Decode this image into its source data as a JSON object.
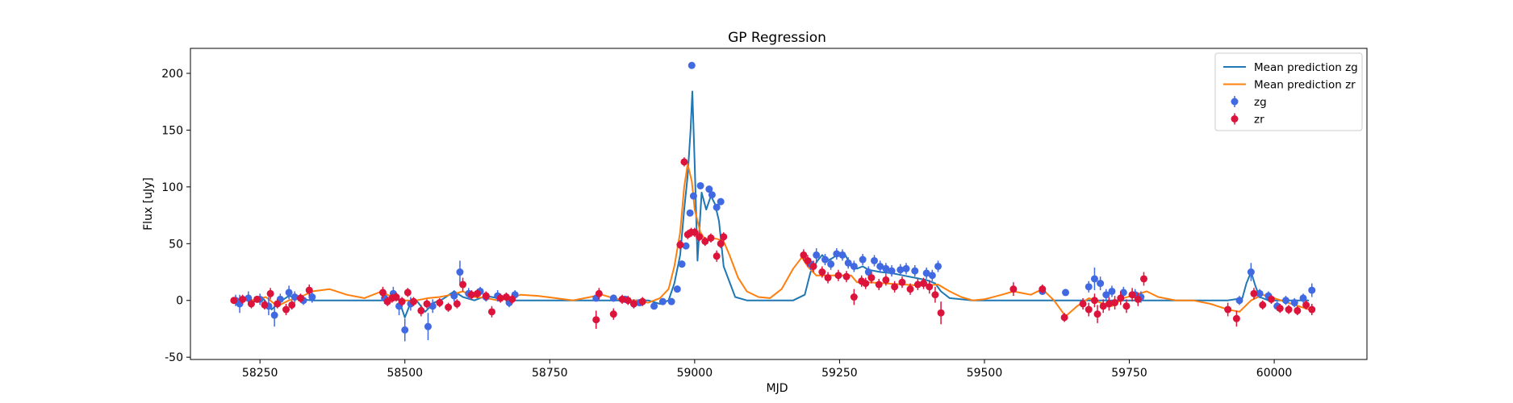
{
  "chart_data": {
    "type": "scatter",
    "title": "GP Regression",
    "xlabel": "MJD",
    "ylabel": "Flux [uJy]",
    "xlim": [
      58130,
      60160
    ],
    "ylim": [
      -52,
      222
    ],
    "xticks": [
      58250,
      58500,
      58750,
      59000,
      59250,
      59500,
      59750,
      60000
    ],
    "yticks": [
      -50,
      0,
      50,
      100,
      150,
      200
    ],
    "grid": false,
    "legend_position": "top-right",
    "legend": [
      "Mean prediction zg",
      "Mean prediction zr",
      "zg",
      "zr"
    ],
    "series": [
      {
        "name": "Mean prediction zg",
        "kind": "line",
        "color": "#1f77b4",
        "x": [
          58200,
          58220,
          58240,
          58255,
          58270,
          58285,
          58300,
          58320,
          58340,
          58380,
          58420,
          58460,
          58475,
          58490,
          58500,
          58510,
          58520,
          58535,
          58550,
          58565,
          58585,
          58600,
          58620,
          58640,
          58660,
          58690,
          58720,
          58780,
          58830,
          58880,
          58920,
          58940,
          58955,
          58965,
          58975,
          58982,
          58988,
          58993,
          58996,
          59000,
          59005,
          59012,
          59020,
          59028,
          59035,
          59042,
          59050,
          59070,
          59090,
          59120,
          59170,
          59190,
          59200,
          59212,
          59220,
          59230,
          59240,
          59250,
          59260,
          59270,
          59280,
          59290,
          59300,
          59320,
          59340,
          59360,
          59380,
          59400,
          59415,
          59425,
          59440,
          59480,
          59520,
          59560,
          59600,
          59660,
          59700,
          59740,
          59780,
          59850,
          59920,
          59945,
          59952,
          59960,
          59968,
          59975,
          59990,
          60020,
          60060
        ],
        "y": [
          0,
          1,
          -1,
          2,
          -8,
          -1,
          4,
          1,
          0,
          0,
          0,
          0,
          3,
          0,
          -15,
          -2,
          0,
          -10,
          -2,
          1,
          8,
          3,
          0,
          4,
          2,
          0,
          0,
          0,
          0,
          0,
          0,
          -3,
          0,
          15,
          40,
          80,
          110,
          150,
          184,
          120,
          35,
          95,
          80,
          92,
          85,
          70,
          30,
          3,
          0,
          0,
          0,
          5,
          25,
          35,
          40,
          35,
          38,
          42,
          40,
          30,
          28,
          30,
          27,
          25,
          24,
          22,
          20,
          18,
          15,
          8,
          2,
          0,
          0,
          0,
          0,
          0,
          0,
          0,
          0,
          0,
          0,
          2,
          15,
          25,
          12,
          3,
          0,
          0,
          0
        ]
      },
      {
        "name": "Mean prediction zr",
        "kind": "line",
        "color": "#ff7f0e",
        "x": [
          58200,
          58220,
          58240,
          58260,
          58280,
          58300,
          58320,
          58340,
          58370,
          58400,
          58430,
          58460,
          58480,
          58500,
          58520,
          58540,
          58560,
          58580,
          58600,
          58620,
          58640,
          58660,
          58680,
          58700,
          58730,
          58760,
          58790,
          58820,
          58840,
          58860,
          58880,
          58900,
          58920,
          58940,
          58955,
          58965,
          58975,
          58982,
          58988,
          58995,
          59000,
          59010,
          59020,
          59030,
          59040,
          59050,
          59060,
          59075,
          59090,
          59110,
          59130,
          59150,
          59170,
          59185,
          59195,
          59210,
          59230,
          59250,
          59270,
          59280,
          59300,
          59330,
          59360,
          59390,
          59420,
          59440,
          59460,
          59480,
          59500,
          59530,
          59550,
          59580,
          59600,
          59620,
          59640,
          59660,
          59680,
          59700,
          59720,
          59740,
          59760,
          59780,
          59800,
          59830,
          59860,
          59890,
          59920,
          59940,
          59960,
          59980,
          60000,
          60030,
          60060
        ],
        "y": [
          0,
          2,
          0,
          3,
          -5,
          0,
          3,
          8,
          10,
          5,
          2,
          8,
          2,
          0,
          0,
          2,
          3,
          5,
          8,
          3,
          2,
          0,
          2,
          5,
          4,
          2,
          0,
          3,
          5,
          2,
          0,
          0,
          -2,
          2,
          10,
          30,
          60,
          100,
          120,
          105,
          80,
          60,
          52,
          55,
          54,
          52,
          40,
          20,
          8,
          3,
          2,
          10,
          28,
          38,
          30,
          22,
          22,
          22,
          22,
          16,
          16,
          15,
          14,
          13,
          14,
          8,
          3,
          0,
          1,
          5,
          8,
          5,
          10,
          0,
          -14,
          -5,
          2,
          -2,
          -5,
          2,
          5,
          8,
          3,
          0,
          0,
          -3,
          -8,
          -10,
          0,
          5,
          2,
          -3,
          -8
        ]
      },
      {
        "name": "zg",
        "kind": "errorbar",
        "color": "#4169e1",
        "x": [
          58208,
          58215,
          58230,
          58250,
          58265,
          58275,
          58285,
          58300,
          58310,
          58325,
          58340,
          58465,
          58480,
          58490,
          58500,
          58510,
          58540,
          58548,
          58585,
          58595,
          58610,
          58630,
          58640,
          58660,
          58680,
          58690,
          58830,
          58860,
          58880,
          58895,
          58905,
          58930,
          58945,
          58960,
          58970,
          58978,
          58985,
          58992,
          58998,
          59010,
          59025,
          59030,
          59038,
          59045,
          59200,
          59210,
          59225,
          59235,
          59245,
          59255,
          59265,
          59275,
          59290,
          59300,
          59310,
          59320,
          59330,
          59340,
          59355,
          59365,
          59380,
          59400,
          59410,
          59420,
          59600,
          59640,
          59680,
          59690,
          59700,
          59710,
          59720,
          59740,
          59760,
          59770,
          59940,
          59960,
          59975,
          59990,
          60005,
          60020,
          60035,
          60050,
          60065
        ],
        "y": [
          0,
          -3,
          2,
          1,
          -5,
          -13,
          1,
          7,
          3,
          0,
          3,
          2,
          6,
          -5,
          -26,
          -3,
          -23,
          -5,
          4,
          25,
          6,
          8,
          3,
          4,
          -2,
          5,
          2,
          2,
          1,
          -3,
          -2,
          -5,
          -1,
          -1,
          10,
          32,
          48,
          77,
          92,
          101,
          98,
          93,
          82,
          87,
          32,
          40,
          36,
          32,
          41,
          40,
          33,
          30,
          36,
          25,
          35,
          30,
          28,
          26,
          27,
          28,
          26,
          24,
          22,
          30,
          8,
          7,
          12,
          19,
          15,
          5,
          8,
          7,
          5,
          3,
          0,
          25,
          6,
          4,
          -5,
          0,
          -2,
          2,
          9
        ],
        "err": [
          5,
          8,
          6,
          5,
          8,
          10,
          5,
          6,
          5,
          4,
          5,
          5,
          6,
          8,
          10,
          6,
          12,
          6,
          5,
          10,
          5,
          4,
          4,
          5,
          4,
          4,
          3,
          3,
          3,
          4,
          3,
          3,
          3,
          3,
          3,
          3,
          3,
          3,
          3,
          3,
          3,
          3,
          3,
          3,
          5,
          6,
          5,
          5,
          5,
          5,
          5,
          5,
          5,
          5,
          5,
          5,
          5,
          5,
          5,
          5,
          5,
          5,
          5,
          5,
          3,
          3,
          5,
          10,
          6,
          5,
          5,
          5,
          5,
          5,
          4,
          8,
          4,
          4,
          4,
          4,
          4,
          4,
          6
        ],
        "outlier": {
          "x": 58995,
          "y": 207
        }
      },
      {
        "name": "zr",
        "kind": "errorbar",
        "color": "#dc143c",
        "x": [
          58205,
          58220,
          58235,
          58245,
          58258,
          58268,
          58280,
          58295,
          58305,
          58320,
          58335,
          58462,
          58470,
          58478,
          58485,
          58495,
          58505,
          58515,
          58528,
          58538,
          58560,
          58575,
          58590,
          58600,
          58615,
          58625,
          58640,
          58650,
          58665,
          58675,
          58685,
          58830,
          58835,
          58860,
          58875,
          58885,
          58895,
          58910,
          58975,
          58982,
          58988,
          58994,
          59000,
          59008,
          59018,
          59028,
          59038,
          59045,
          59050,
          59188,
          59195,
          59205,
          59220,
          59230,
          59248,
          59262,
          59275,
          59288,
          59295,
          59305,
          59318,
          59330,
          59345,
          59358,
          59372,
          59385,
          59395,
          59405,
          59415,
          59425,
          59550,
          59600,
          59638,
          59670,
          59680,
          59690,
          59695,
          59705,
          59715,
          59725,
          59735,
          59745,
          59755,
          59765,
          59775,
          59920,
          59935,
          59965,
          59980,
          59995,
          60010,
          60025,
          60040,
          60055,
          60065
        ],
        "y": [
          0,
          1,
          -3,
          1,
          -4,
          6,
          -3,
          -8,
          -4,
          2,
          9,
          7,
          -1,
          2,
          3,
          -1,
          7,
          -1,
          -9,
          -3,
          -2,
          -6,
          -3,
          14,
          5,
          6,
          4,
          -10,
          2,
          3,
          1,
          -17,
          6,
          -12,
          1,
          0,
          -3,
          -1,
          49,
          122,
          58,
          60,
          60,
          56,
          52,
          55,
          39,
          50,
          56,
          40,
          35,
          30,
          25,
          20,
          22,
          21,
          3,
          17,
          15,
          20,
          14,
          18,
          12,
          16,
          10,
          14,
          15,
          12,
          5,
          -11,
          10,
          10,
          -15,
          -3,
          -8,
          0,
          -12,
          -5,
          -3,
          -2,
          2,
          -5,
          5,
          1,
          19,
          -8,
          -16,
          6,
          -4,
          1,
          -7,
          -8,
          -9,
          -4,
          -8
        ],
        "err": [
          3,
          4,
          4,
          3,
          4,
          5,
          4,
          5,
          4,
          4,
          5,
          5,
          4,
          4,
          4,
          4,
          4,
          4,
          5,
          4,
          4,
          4,
          4,
          6,
          4,
          4,
          4,
          5,
          4,
          4,
          4,
          8,
          5,
          5,
          4,
          4,
          4,
          4,
          4,
          4,
          4,
          4,
          4,
          4,
          4,
          4,
          5,
          4,
          4,
          5,
          5,
          5,
          5,
          5,
          5,
          5,
          7,
          5,
          5,
          5,
          5,
          5,
          5,
          5,
          5,
          5,
          5,
          6,
          7,
          10,
          6,
          4,
          4,
          5,
          6,
          6,
          8,
          6,
          6,
          6,
          6,
          6,
          6,
          6,
          6,
          6,
          7,
          5,
          4,
          4,
          4,
          4,
          4,
          4,
          5
        ]
      }
    ]
  }
}
